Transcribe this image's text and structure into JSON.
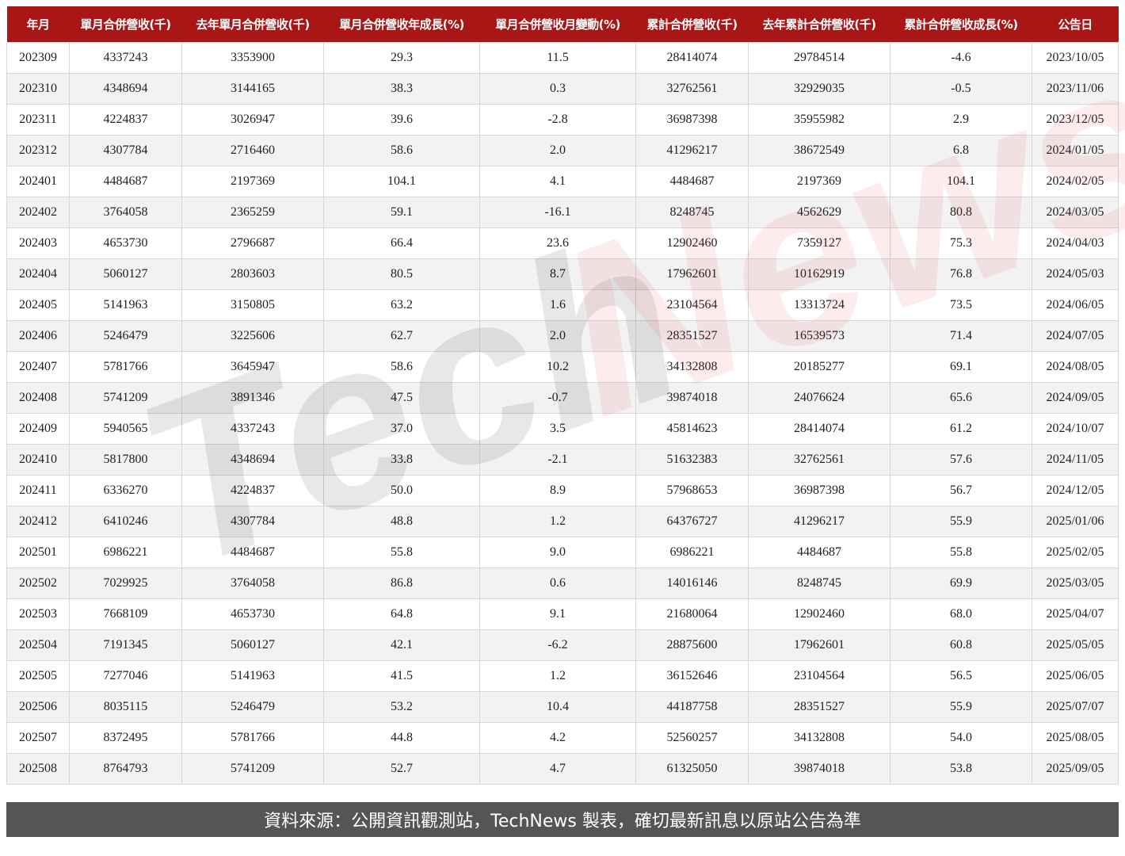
{
  "table": {
    "headers": [
      "年月",
      "單月合併營收(千)",
      "去年單月合併營收(千)",
      "單月合併營收年成長(%)",
      "單月合併營收月變動(%)",
      "累計合併營收(千)",
      "去年累計合併營收(千)",
      "累計合併營收成長(%)",
      "公告日"
    ],
    "rows": [
      [
        "202309",
        "4337243",
        "3353900",
        "29.3",
        "11.5",
        "28414074",
        "29784514",
        "-4.6",
        "2023/10/05"
      ],
      [
        "202310",
        "4348694",
        "3144165",
        "38.3",
        "0.3",
        "32762561",
        "32929035",
        "-0.5",
        "2023/11/06"
      ],
      [
        "202311",
        "4224837",
        "3026947",
        "39.6",
        "-2.8",
        "36987398",
        "35955982",
        "2.9",
        "2023/12/05"
      ],
      [
        "202312",
        "4307784",
        "2716460",
        "58.6",
        "2.0",
        "41296217",
        "38672549",
        "6.8",
        "2024/01/05"
      ],
      [
        "202401",
        "4484687",
        "2197369",
        "104.1",
        "4.1",
        "4484687",
        "2197369",
        "104.1",
        "2024/02/05"
      ],
      [
        "202402",
        "3764058",
        "2365259",
        "59.1",
        "-16.1",
        "8248745",
        "4562629",
        "80.8",
        "2024/03/05"
      ],
      [
        "202403",
        "4653730",
        "2796687",
        "66.4",
        "23.6",
        "12902460",
        "7359127",
        "75.3",
        "2024/04/03"
      ],
      [
        "202404",
        "5060127",
        "2803603",
        "80.5",
        "8.7",
        "17962601",
        "10162919",
        "76.8",
        "2024/05/03"
      ],
      [
        "202405",
        "5141963",
        "3150805",
        "63.2",
        "1.6",
        "23104564",
        "13313724",
        "73.5",
        "2024/06/05"
      ],
      [
        "202406",
        "5246479",
        "3225606",
        "62.7",
        "2.0",
        "28351527",
        "16539573",
        "71.4",
        "2024/07/05"
      ],
      [
        "202407",
        "5781766",
        "3645947",
        "58.6",
        "10.2",
        "34132808",
        "20185277",
        "69.1",
        "2024/08/05"
      ],
      [
        "202408",
        "5741209",
        "3891346",
        "47.5",
        "-0.7",
        "39874018",
        "24076624",
        "65.6",
        "2024/09/05"
      ],
      [
        "202409",
        "5940565",
        "4337243",
        "37.0",
        "3.5",
        "45814623",
        "28414074",
        "61.2",
        "2024/10/07"
      ],
      [
        "202410",
        "5817800",
        "4348694",
        "33.8",
        "-2.1",
        "51632383",
        "32762561",
        "57.6",
        "2024/11/05"
      ],
      [
        "202411",
        "6336270",
        "4224837",
        "50.0",
        "8.9",
        "57968653",
        "36987398",
        "56.7",
        "2024/12/05"
      ],
      [
        "202412",
        "6410246",
        "4307784",
        "48.8",
        "1.2",
        "64376727",
        "41296217",
        "55.9",
        "2025/01/06"
      ],
      [
        "202501",
        "6986221",
        "4484687",
        "55.8",
        "9.0",
        "6986221",
        "4484687",
        "55.8",
        "2025/02/05"
      ],
      [
        "202502",
        "7029925",
        "3764058",
        "86.8",
        "0.6",
        "14016146",
        "8248745",
        "69.9",
        "2025/03/05"
      ],
      [
        "202503",
        "7668109",
        "4653730",
        "64.8",
        "9.1",
        "21680064",
        "12902460",
        "68.0",
        "2025/04/07"
      ],
      [
        "202504",
        "7191345",
        "5060127",
        "42.1",
        "-6.2",
        "28875600",
        "17962601",
        "60.8",
        "2025/05/05"
      ],
      [
        "202505",
        "7277046",
        "5141963",
        "41.5",
        "1.2",
        "36152646",
        "23104564",
        "56.5",
        "2025/06/05"
      ],
      [
        "202506",
        "8035115",
        "5246479",
        "53.2",
        "10.4",
        "44187758",
        "28351527",
        "55.9",
        "2025/07/07"
      ],
      [
        "202507",
        "8372495",
        "5781766",
        "44.8",
        "4.2",
        "52560257",
        "34132808",
        "54.0",
        "2025/08/05"
      ],
      [
        "202508",
        "8764793",
        "5741209",
        "52.7",
        "4.7",
        "61325050",
        "39874018",
        "53.8",
        "2025/09/05"
      ]
    ]
  },
  "watermark": {
    "text_gray": "Tech",
    "text_red": "News"
  },
  "footer": {
    "source": "資料來源：公開資訊觀測站，TechNews 製表，確切最新訊息以原站公告為準"
  },
  "colors": {
    "header_bg": "#a81616",
    "footer_bg": "#555555",
    "stripe": "#f2f2f2"
  }
}
